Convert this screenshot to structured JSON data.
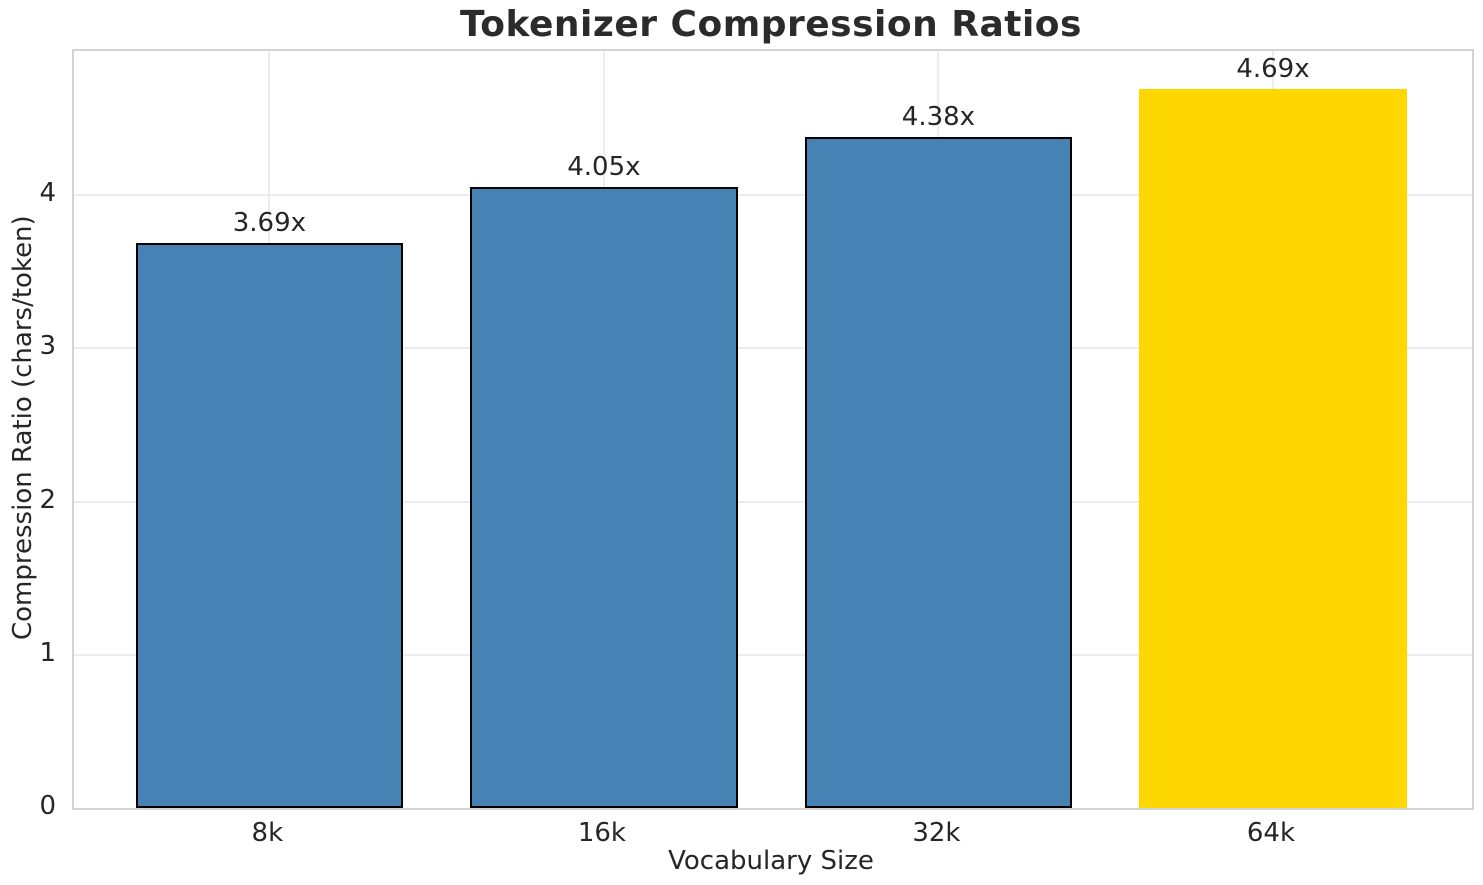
{
  "chart_data": {
    "type": "bar",
    "title": "Tokenizer Compression Ratios",
    "xlabel": "Vocabulary Size",
    "ylabel": "Compression Ratio (chars/token)",
    "categories": [
      "8k",
      "16k",
      "32k",
      "64k"
    ],
    "values": [
      3.69,
      4.05,
      4.38,
      4.69
    ],
    "bar_labels": [
      "3.69x",
      "4.05x",
      "4.38x",
      "4.69x"
    ],
    "yticks": [
      0,
      1,
      2,
      3,
      4
    ],
    "ylim": [
      0,
      4.94
    ],
    "grid": true,
    "legend_position": "none",
    "bar_colors": [
      "#4682b4",
      "#4682b4",
      "#4682b4",
      "#ffd700"
    ],
    "bar_edge_colors": [
      "#000000",
      "#000000",
      "#000000",
      "#ffd700"
    ],
    "highlight_index": 3
  },
  "style_colors": {
    "background": "#ffffff",
    "grid": "#ececec",
    "spine": "#d3d3d3",
    "text": "#262626",
    "title": "#2b2b2b",
    "bar_blue": "#4682b4",
    "bar_gold": "#ffd700",
    "bar_edge": "#000000"
  }
}
